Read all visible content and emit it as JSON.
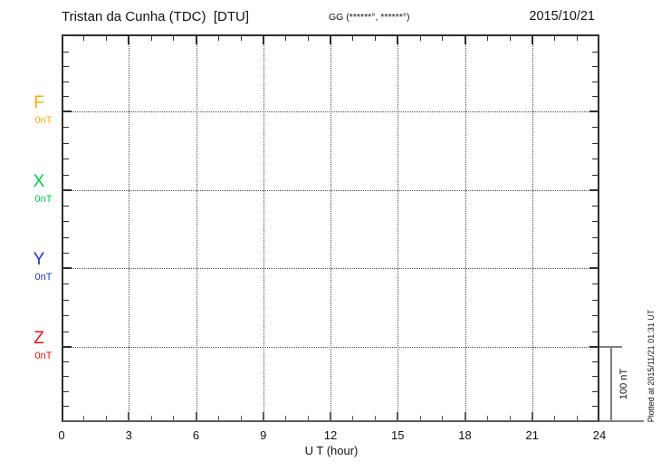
{
  "header": {
    "title": "Tristan da Cunha (TDC)  [DTU]",
    "coordinates": "GG (******°, ******°)",
    "date": "2015/10/21"
  },
  "chart_data": {
    "type": "line",
    "title": "Tristan da Cunha (TDC)  [DTU]",
    "coordinates_label": "GG (******°, ******°)",
    "date": "2015/10/21",
    "xlabel": "U T (hour)",
    "xlim": [
      0,
      24
    ],
    "x_major_ticks": [
      0,
      3,
      6,
      9,
      12,
      15,
      18,
      21,
      24
    ],
    "x_minor_tick_interval_hours": 1,
    "grid": "dotted vertical lines every 3 hours, dotted horizontal line at each component baseline",
    "series": [
      {
        "name": "F",
        "baseline_label": "0nT",
        "color": "#FFAA00",
        "x": [],
        "values": []
      },
      {
        "name": "X",
        "baseline_label": "0nT",
        "color": "#00CC44",
        "x": [],
        "values": []
      },
      {
        "name": "Y",
        "baseline_label": "0nT",
        "color": "#2233CC",
        "x": [],
        "values": []
      },
      {
        "name": "Z",
        "baseline_label": "0nT",
        "color": "#EE1111",
        "x": [],
        "values": []
      }
    ],
    "data_note": "No data traces are drawn – the magnetogram panel is empty for this day",
    "scale_bar_label": "100 nT",
    "footnote": "Plotted at 2015/11/21 01:31 UT"
  }
}
